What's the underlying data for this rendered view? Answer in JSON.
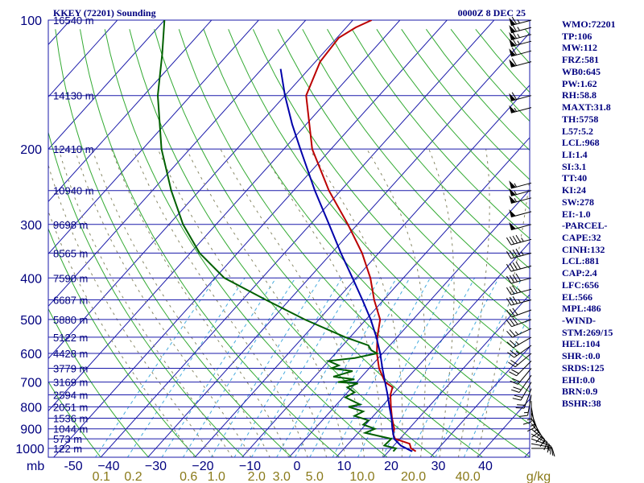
{
  "chart_data": {
    "type": "line",
    "title": "KKEY (72201) Sounding",
    "time": "0000Z  8 DEC 25",
    "pressure_label": "mb",
    "mixing_ratio_unit": "g/kg",
    "pressure_ticks": [
      {
        "p": 100,
        "label": "100"
      },
      {
        "p": 200,
        "label": "200"
      },
      {
        "p": 300,
        "label": "300"
      },
      {
        "p": 400,
        "label": "400"
      },
      {
        "p": 500,
        "label": "500"
      },
      {
        "p": 600,
        "label": "600"
      },
      {
        "p": 700,
        "label": "700"
      },
      {
        "p": 800,
        "label": "800"
      },
      {
        "p": 900,
        "label": "900"
      },
      {
        "p": 1000,
        "label": "1000"
      }
    ],
    "temperature_ticks": [
      {
        "t": -50,
        "label": "-50"
      },
      {
        "t": -40,
        "label": "−40"
      },
      {
        "t": -30,
        "label": "−30"
      },
      {
        "t": -20,
        "label": "−20"
      },
      {
        "t": -10,
        "label": "−10"
      },
      {
        "t": 0,
        "label": "0"
      },
      {
        "t": 10,
        "label": "10"
      },
      {
        "t": 20,
        "label": "20"
      },
      {
        "t": 30,
        "label": "30"
      },
      {
        "t": 40,
        "label": "40"
      }
    ],
    "mixing_ratio_ticks": [
      {
        "w": 0.1,
        "label": "0.1"
      },
      {
        "w": 0.2,
        "label": "0.2"
      },
      {
        "w": 0.6,
        "label": "0.6"
      },
      {
        "w": 1.0,
        "label": "1.0"
      },
      {
        "w": 2.0,
        "label": "2.0"
      },
      {
        "w": 3.0,
        "label": "3.0"
      },
      {
        "w": 5.0,
        "label": "5.0"
      },
      {
        "w": 10.0,
        "label": "10.0"
      },
      {
        "w": 20.0,
        "label": "20.0"
      },
      {
        "w": 40.0,
        "label": "40.0"
      }
    ],
    "height_levels": [
      {
        "p": 100,
        "label": "16540 m"
      },
      {
        "p": 150,
        "label": "14130 m"
      },
      {
        "p": 200,
        "label": "12410 m"
      },
      {
        "p": 250,
        "label": "10940 m"
      },
      {
        "p": 300,
        "label": "9698 m"
      },
      {
        "p": 350,
        "label": "8565 m"
      },
      {
        "p": 400,
        "label": "7590 m"
      },
      {
        "p": 450,
        "label": "6687 m"
      },
      {
        "p": 500,
        "label": "5880 m"
      },
      {
        "p": 550,
        "label": "5122 m"
      },
      {
        "p": 600,
        "label": "4428 m"
      },
      {
        "p": 650,
        "label": "3779 m"
      },
      {
        "p": 700,
        "label": "3169 m"
      },
      {
        "p": 750,
        "label": "2594 m"
      },
      {
        "p": 800,
        "label": "2051 m"
      },
      {
        "p": 850,
        "label": "1536 m"
      },
      {
        "p": 900,
        "label": "1044 m"
      },
      {
        "p": 950,
        "label": "573 m"
      },
      {
        "p": 1000,
        "label": "122 m"
      }
    ],
    "series": [
      {
        "name": "temperature",
        "color": "#bb0000",
        "points": [
          [
            1016,
            25.8
          ],
          [
            1000,
            24.2
          ],
          [
            975,
            23.0
          ],
          [
            950,
            19.0
          ],
          [
            925,
            17.6
          ],
          [
            900,
            16.9
          ],
          [
            850,
            14.4
          ],
          [
            800,
            12.0
          ],
          [
            750,
            9.6
          ],
          [
            720,
            8.6
          ],
          [
            700,
            6.0
          ],
          [
            650,
            2.1
          ],
          [
            600,
            -1.2
          ],
          [
            550,
            -4.2
          ],
          [
            500,
            -7.0
          ],
          [
            450,
            -12.0
          ],
          [
            400,
            -17.0
          ],
          [
            350,
            -23.5
          ],
          [
            300,
            -32.0
          ],
          [
            250,
            -42.5
          ],
          [
            200,
            -54.0
          ],
          [
            150,
            -65.5
          ],
          [
            125,
            -69.0
          ],
          [
            110,
            -69.6
          ],
          [
            104,
            -68.0
          ],
          [
            100,
            -66.0
          ]
        ]
      },
      {
        "name": "dewpoint",
        "color": "#006000",
        "points": [
          [
            1016,
            21.0
          ],
          [
            1000,
            21.0
          ],
          [
            985,
            18.0
          ],
          [
            950,
            18.2
          ],
          [
            920,
            11.5
          ],
          [
            900,
            12.8
          ],
          [
            880,
            9.5
          ],
          [
            860,
            9.8
          ],
          [
            840,
            6.0
          ],
          [
            820,
            7.0
          ],
          [
            800,
            3.0
          ],
          [
            790,
            5.0
          ],
          [
            760,
            0.5
          ],
          [
            740,
            1.5
          ],
          [
            720,
            -1.0
          ],
          [
            705,
            0.5
          ],
          [
            700,
            -4.0
          ],
          [
            690,
            -1.0
          ],
          [
            680,
            -6.0
          ],
          [
            660,
            -3.0
          ],
          [
            650,
            -8.0
          ],
          [
            640,
            -7.0
          ],
          [
            625,
            -10.0
          ],
          [
            615,
            -5.0
          ],
          [
            600,
            -1.2
          ],
          [
            590,
            -3.0
          ],
          [
            575,
            -4.5
          ],
          [
            550,
            -11.0
          ],
          [
            500,
            -23.0
          ],
          [
            450,
            -35.0
          ],
          [
            400,
            -48.0
          ],
          [
            350,
            -58.0
          ],
          [
            300,
            -67.0
          ],
          [
            250,
            -76.0
          ],
          [
            200,
            -86.0
          ],
          [
            150,
            -97.0
          ],
          [
            120,
            -104.0
          ],
          [
            100,
            -110.0
          ]
        ]
      },
      {
        "name": "parcel",
        "color": "#0000aa",
        "points": [
          [
            1016,
            25.0
          ],
          [
            985,
            21.5
          ],
          [
            950,
            18.8
          ],
          [
            900,
            16.5
          ],
          [
            850,
            14.3
          ],
          [
            800,
            11.7
          ],
          [
            750,
            9.0
          ],
          [
            700,
            6.0
          ],
          [
            650,
            2.8
          ],
          [
            600,
            -0.5
          ],
          [
            550,
            -4.4
          ],
          [
            500,
            -9.0
          ],
          [
            450,
            -14.5
          ],
          [
            400,
            -20.8
          ],
          [
            350,
            -28.0
          ],
          [
            300,
            -36.0
          ],
          [
            250,
            -45.5
          ],
          [
            200,
            -56.5
          ],
          [
            175,
            -63.0
          ],
          [
            150,
            -70.0
          ],
          [
            130,
            -76.0
          ]
        ]
      }
    ],
    "wind_barbs": [
      {
        "p": 1000,
        "dir": 90,
        "spd": 10
      },
      {
        "p": 975,
        "dir": 100,
        "spd": 15
      },
      {
        "p": 950,
        "dir": 110,
        "spd": 15
      },
      {
        "p": 925,
        "dir": 120,
        "spd": 15
      },
      {
        "p": 900,
        "dir": 130,
        "spd": 15
      },
      {
        "p": 875,
        "dir": 140,
        "spd": 15
      },
      {
        "p": 850,
        "dir": 150,
        "spd": 15
      },
      {
        "p": 825,
        "dir": 160,
        "spd": 15
      },
      {
        "p": 800,
        "dir": 170,
        "spd": 15
      },
      {
        "p": 775,
        "dir": 180,
        "spd": 15
      },
      {
        "p": 750,
        "dir": 190,
        "spd": 15
      },
      {
        "p": 725,
        "dir": 200,
        "spd": 20
      },
      {
        "p": 700,
        "dir": 210,
        "spd": 20
      },
      {
        "p": 675,
        "dir": 215,
        "spd": 20
      },
      {
        "p": 650,
        "dir": 220,
        "spd": 20
      },
      {
        "p": 625,
        "dir": 225,
        "spd": 20
      },
      {
        "p": 600,
        "dir": 230,
        "spd": 20
      },
      {
        "p": 575,
        "dir": 235,
        "spd": 25
      },
      {
        "p": 550,
        "dir": 240,
        "spd": 25
      },
      {
        "p": 525,
        "dir": 245,
        "spd": 25
      },
      {
        "p": 500,
        "dir": 250,
        "spd": 30
      },
      {
        "p": 475,
        "dir": 250,
        "spd": 30
      },
      {
        "p": 450,
        "dir": 255,
        "spd": 35
      },
      {
        "p": 425,
        "dir": 255,
        "spd": 35
      },
      {
        "p": 400,
        "dir": 255,
        "spd": 40
      },
      {
        "p": 375,
        "dir": 255,
        "spd": 40
      },
      {
        "p": 350,
        "dir": 255,
        "spd": 45
      },
      {
        "p": 325,
        "dir": 255,
        "spd": 45
      },
      {
        "p": 300,
        "dir": 255,
        "spd": 50
      },
      {
        "p": 280,
        "dir": 255,
        "spd": 50
      },
      {
        "p": 260,
        "dir": 255,
        "spd": 55
      },
      {
        "p": 250,
        "dir": 255,
        "spd": 55
      },
      {
        "p": 240,
        "dir": 255,
        "spd": 55
      },
      {
        "p": 160,
        "dir": 255,
        "spd": 55
      },
      {
        "p": 150,
        "dir": 255,
        "spd": 60
      },
      {
        "p": 125,
        "dir": 255,
        "spd": 60
      },
      {
        "p": 118,
        "dir": 255,
        "spd": 60
      },
      {
        "p": 112,
        "dir": 255,
        "spd": 65
      },
      {
        "p": 108,
        "dir": 255,
        "spd": 65
      },
      {
        "p": 104,
        "dir": 255,
        "spd": 65
      },
      {
        "p": 100,
        "dir": 255,
        "spd": 65
      }
    ]
  },
  "indices": [
    "WMO:72201",
    "TP:106",
    "MW:112",
    "FRZ:581",
    "WB0:645",
    "PW:1.62",
    "RH:58.8",
    "MAXT:31.8",
    "TH:5758",
    "L57:5.2",
    "LCL:968",
    "LI:1.4",
    "SI:3.1",
    "TT:40",
    "KI:24",
    "SW:278",
    "EI:-1.0",
    "-PARCEL-",
    "CAPE:32",
    "CINH:132",
    "LCL:881",
    "CAP:2.4",
    "LFC:656",
    "EL:566",
    "MPL:486",
    "-WIND-",
    "STM:269/15",
    "HEL:104",
    "SHR-:0.0",
    "SRDS:125",
    "EHI:0.0",
    "BRN:0.9",
    "BSHR:38"
  ]
}
